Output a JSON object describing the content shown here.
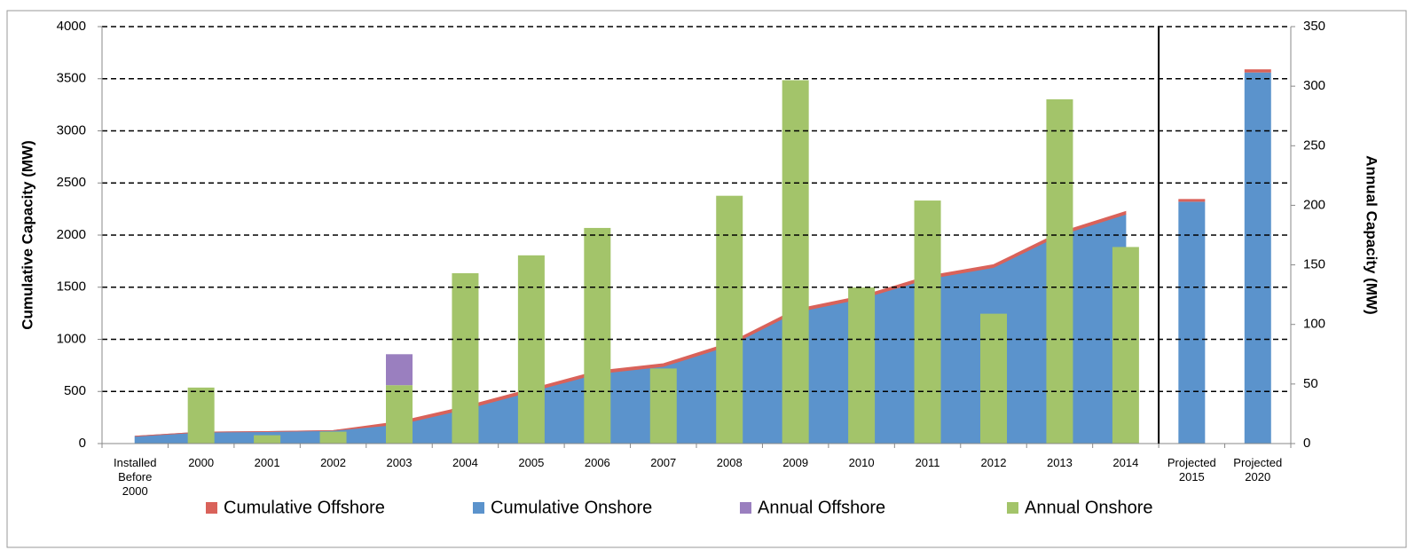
{
  "chart_data": {
    "type": "combo",
    "categories": [
      "Installed Before 2000",
      "2000",
      "2001",
      "2002",
      "2003",
      "2004",
      "2005",
      "2006",
      "2007",
      "2008",
      "2009",
      "2010",
      "2011",
      "2012",
      "2013",
      "2014",
      "Projected 2015",
      "Projected 2020"
    ],
    "projected_from": 16,
    "ylabel": "Cumulative Capacity (MW)",
    "y2label": "Annual Capacity (MW)",
    "ylim": [
      0,
      4000
    ],
    "yticks": [
      0,
      500,
      1000,
      1500,
      2000,
      2500,
      3000,
      3500,
      4000
    ],
    "y2lim": [
      0,
      350
    ],
    "y2ticks": [
      0,
      50,
      100,
      150,
      200,
      250,
      300,
      350
    ],
    "grid": true,
    "legend": "bottom",
    "series": [
      {
        "name": "Cumulative Offshore",
        "color": "#d9625a",
        "kind": "area",
        "stack": "cum",
        "values": [
          0,
          0,
          0,
          0,
          26,
          26,
          26,
          26,
          26,
          26,
          26,
          26,
          26,
          26,
          26,
          26,
          26,
          30
        ]
      },
      {
        "name": "Cumulative Onshore",
        "color": "#5b93cc",
        "kind": "area",
        "stack": "cum",
        "values": [
          70,
          110,
          115,
          125,
          185,
          330,
          500,
          670,
          740,
          940,
          1260,
          1390,
          1580,
          1690,
          2000,
          2200,
          2320,
          3560
        ]
      },
      {
        "name": "Annual Offshore",
        "color": "#9a7fbf",
        "kind": "bar",
        "axis": "y2",
        "stack": "ann",
        "values": [
          null,
          null,
          null,
          null,
          26,
          null,
          null,
          null,
          null,
          null,
          null,
          null,
          null,
          null,
          null,
          null,
          null,
          null
        ]
      },
      {
        "name": "Annual Onshore",
        "color": "#a3c46a",
        "kind": "bar",
        "axis": "y2",
        "stack": "ann",
        "values": [
          null,
          47,
          7,
          10,
          49,
          143,
          158,
          181,
          63,
          208,
          305,
          131,
          204,
          109,
          289,
          165,
          null,
          null
        ]
      }
    ]
  }
}
